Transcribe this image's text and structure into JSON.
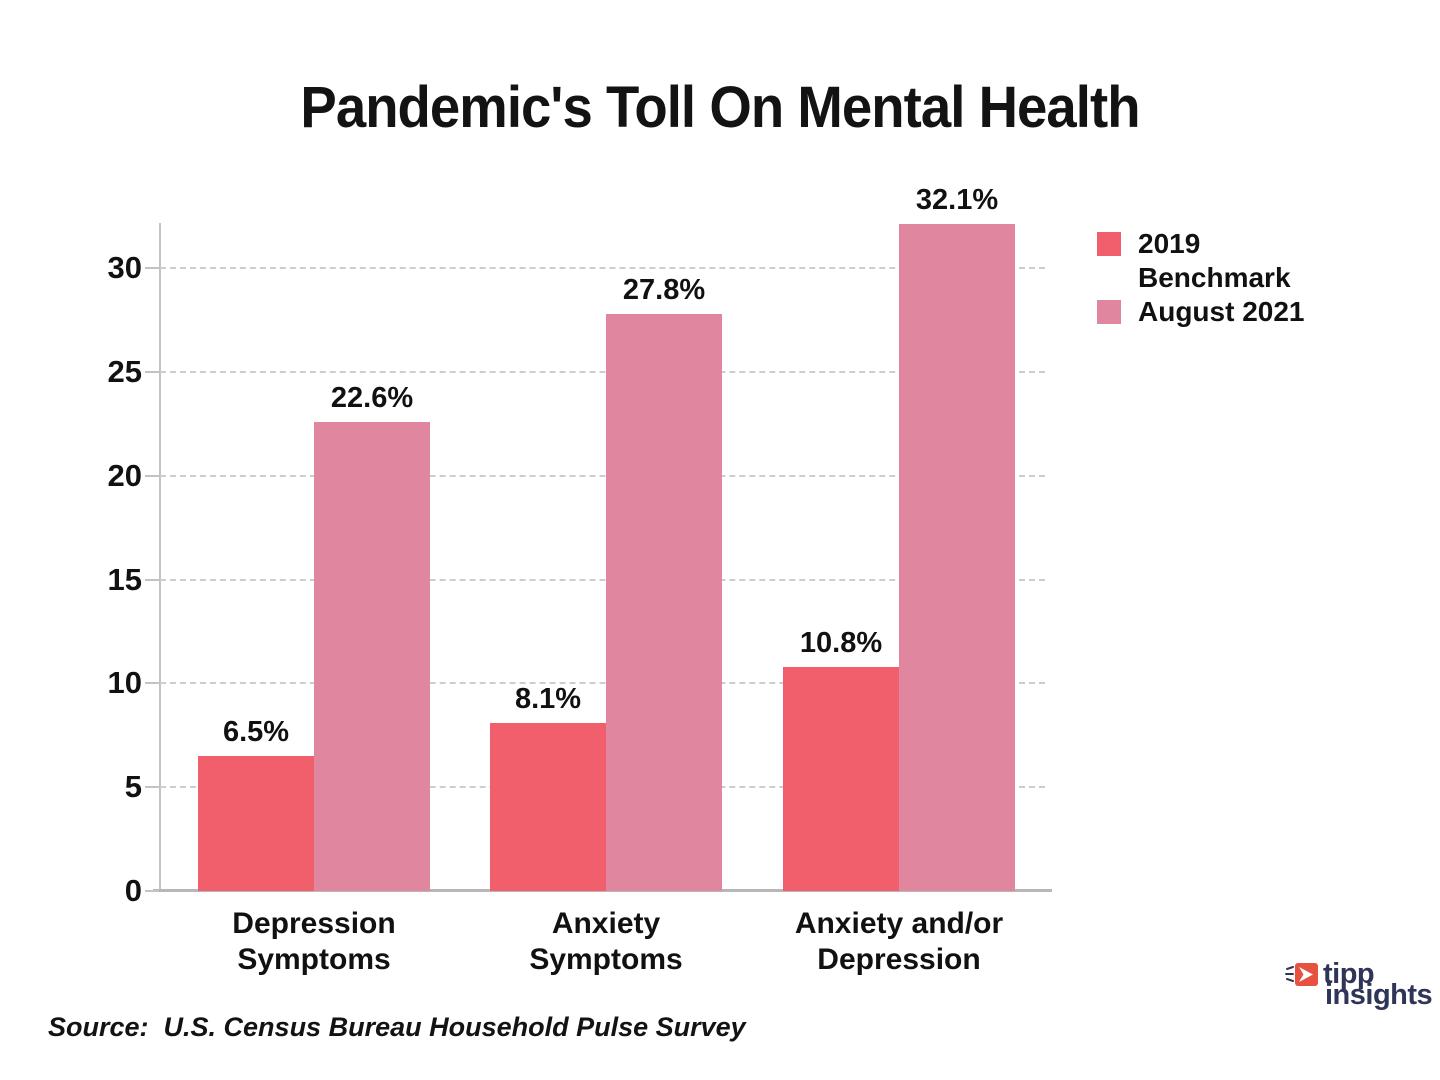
{
  "title": "Pandemic's Toll On Mental Health",
  "source": "Source:  U.S. Census Bureau Household Pulse Survey",
  "logo": {
    "line1": "tipp",
    "line2": "insights",
    "navy": "#2F3556",
    "red": "#E65140"
  },
  "legend": {
    "position": "right",
    "items": [
      {
        "label": "2019\nBenchmark",
        "color": "#F05F6B"
      },
      {
        "label": "August 2021",
        "color": "#E0879F"
      }
    ]
  },
  "chart_data": {
    "type": "bar",
    "title": "Pandemic's Toll On Mental Health",
    "categories": [
      "Depression\nSymptoms",
      "Anxiety\nSymptoms",
      "Anxiety and/or\nDepression"
    ],
    "series": [
      {
        "name": "2019 Benchmark",
        "color": "#F05F6B",
        "values": [
          6.5,
          8.1,
          10.8
        ],
        "labels": [
          "6.5%",
          "8.1%",
          "10.8%"
        ]
      },
      {
        "name": "August 2021",
        "color": "#E0879F",
        "values": [
          22.6,
          27.8,
          32.1
        ],
        "labels": [
          "22.6%",
          "27.8%",
          "32.1%"
        ]
      }
    ],
    "xlabel": "",
    "ylabel": "",
    "yticks": [
      0,
      5,
      10,
      15,
      20,
      25,
      30
    ],
    "ylim": [
      0,
      32.2
    ],
    "grid": "dashed-horizontal",
    "legend_position": "upper-right",
    "value_labels": true
  }
}
